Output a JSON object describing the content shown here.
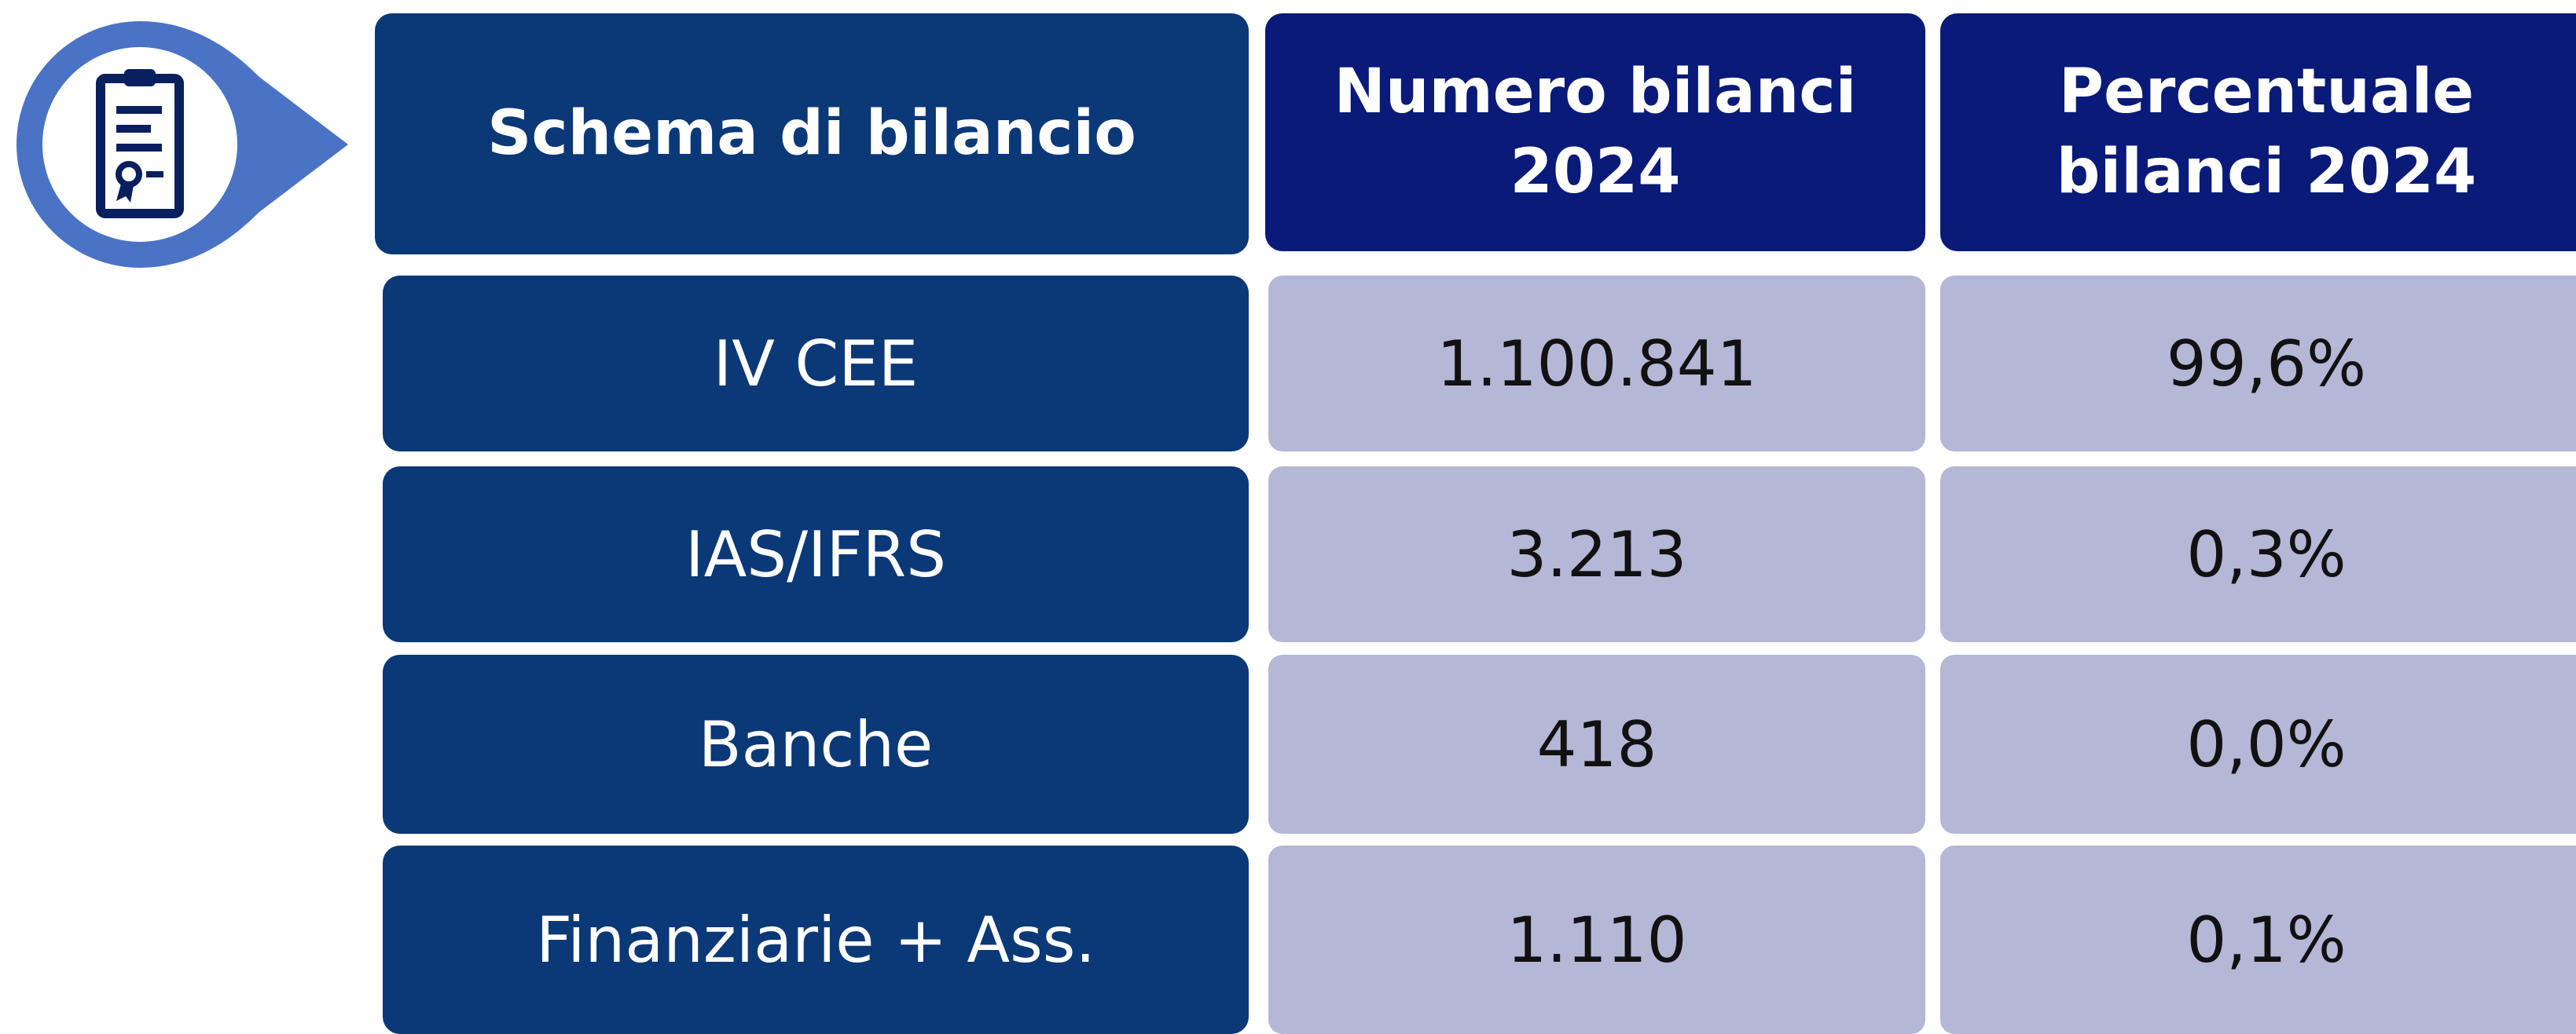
{
  "table": {
    "header": [
      "Schema di bilancio",
      "Numero bilanci 2024",
      "Percentuale bilanci 2024"
    ],
    "rows": [
      [
        "IV CEE",
        "1.100.841",
        "99,6%"
      ],
      [
        "IAS/IFRS",
        "3.213",
        "0,3%"
      ],
      [
        "Banche",
        "418",
        "0,0%"
      ],
      [
        "Finanziarie + Ass.",
        "1.110",
        "0,1%"
      ]
    ]
  }
}
